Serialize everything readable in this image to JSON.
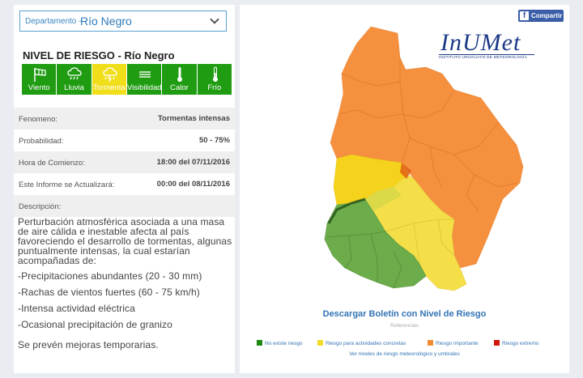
{
  "department": {
    "label": "Departamento -",
    "value": "Río Negro"
  },
  "risk": {
    "title": "NIVEL DE RIESGO - Río Negro",
    "phenomena": [
      {
        "label": "Viento",
        "icon": "wind-flag-icon",
        "active": false
      },
      {
        "label": "Lluvia",
        "icon": "rain-cloud-icon",
        "active": false
      },
      {
        "label": "Tormenta",
        "icon": "storm-cloud-icon",
        "active": true
      },
      {
        "label": "Visibilidad",
        "icon": "fog-lines-icon",
        "active": false
      },
      {
        "label": "Calor",
        "icon": "thermometer-high-icon",
        "active": false
      },
      {
        "label": "Frío",
        "icon": "thermometer-low-icon",
        "active": false
      }
    ]
  },
  "details": [
    {
      "key": "Fenomeno:",
      "value": "Tormentas intensas"
    },
    {
      "key": "Probabilidad:",
      "value": "50 - 75%"
    },
    {
      "key": "Hora de Comienzo:",
      "value": "18:00 del 07/11/2016"
    },
    {
      "key": "Este Informe se Actualizará:",
      "value": "00:00 del 08/11/2016"
    },
    {
      "key": "Descripción:",
      "value": ""
    }
  ],
  "description": {
    "intro": "Perturbación atmosférica asociada a una masa de aire cálida e inestable afecta al país favoreciendo el desarrollo de tormentas, algunas puntualmente intensas, la cual estarían acompañadas de:",
    "items": [
      "-Precipitaciones abundantes (20 - 30 mm)",
      "-Rachas de vientos fuertes (60 - 75 km/h)",
      "-Intensa actividad eléctrica",
      "-Ocasional precipitación de granizo"
    ],
    "closing": "Se prevén mejoras temporarias."
  },
  "share": {
    "label": "Compartir",
    "icon": "facebook-icon"
  },
  "logo": {
    "brand": "InUMet",
    "subtitle": "INSTITUTO URUGUAYO DE METEOROLOGÍA"
  },
  "download_label": "Descargar Boletín con Nivel de Riesgo",
  "references_label": "Referencias",
  "legend": [
    {
      "label": "No existe riesgo",
      "color": "#1f8a12"
    },
    {
      "label": "Riesgo para actividades concretas",
      "color": "#f3dc2c"
    },
    {
      "label": "Riesgo importante",
      "color": "#ef8b33"
    },
    {
      "label": "Riesgo extremo",
      "color": "#d2180e"
    }
  ],
  "levels_link": "Ver niveles de riesgo meteorológico y umbrales",
  "colors": {
    "green": "#6cac4a",
    "yellow": "#f4df48",
    "yellow_strong": "#f5d21c",
    "orange": "#f4903e",
    "link_blue": "#3374b5"
  }
}
